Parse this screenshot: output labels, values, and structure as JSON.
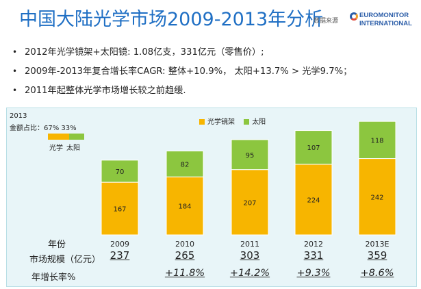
{
  "title": "中国大陆光学市场2009-2013年分析",
  "source_label": "数据来源",
  "logo": {
    "line1": "EUROMONITOR",
    "line2": "INTERNATIONAL"
  },
  "bullets": [
    "2012年光学镜架+太阳镜: 1.08亿支，331亿元（零售价）;",
    "2009年-2013年复合增长率CAGR: 整体+10.9%， 太阳+13.7% > 光学9.7%；",
    "2011年起整体光学市场增长较之前趋缓."
  ],
  "share_inset": {
    "year": "2013",
    "label": "金额占比：67%  33%",
    "optical_pct": 67,
    "sun_pct": 33,
    "legend_optical": "光学",
    "legend_sun": "太阳"
  },
  "colors": {
    "optical": "#f7b500",
    "sun": "#8cc63f",
    "frame": "#e8f5f8"
  },
  "legend": {
    "optical": "光学镜架",
    "sun": "太阳"
  },
  "row_labels": {
    "year": "年份",
    "size": "市场规模（亿元）",
    "growth": "年增长率%"
  },
  "table": {
    "years": [
      "2009",
      "2010",
      "2011",
      "2012",
      "2013E"
    ],
    "sizes": [
      "237",
      "265",
      "303",
      "331",
      "359"
    ],
    "growth": [
      "",
      "+11.8%",
      "+14.2%",
      "+9.3%",
      "+8.6%"
    ]
  },
  "chart_data": {
    "type": "bar",
    "stacked": true,
    "categories": [
      "2009",
      "2010",
      "2011",
      "2012",
      "2013E"
    ],
    "series": [
      {
        "name": "光学镜架",
        "values": [
          167,
          184,
          207,
          224,
          242
        ]
      },
      {
        "name": "太阳",
        "values": [
          70,
          82,
          95,
          107,
          118
        ]
      }
    ],
    "ylim": [
      0,
      380
    ],
    "grid": false,
    "legend_position": "top-center"
  }
}
